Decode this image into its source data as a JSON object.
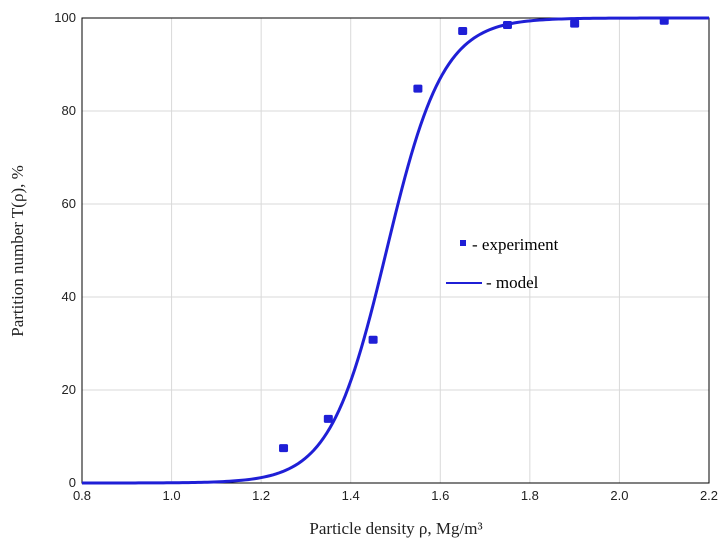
{
  "chart_data": {
    "type": "scatter",
    "xlabel": "Particle density ρ, Mg/m³",
    "ylabel": "Partition number T(ρ), %",
    "xlim": [
      0.8,
      2.2
    ],
    "ylim": [
      0,
      100
    ],
    "xticks": [
      "0.8",
      "1.0",
      "1.2",
      "1.4",
      "1.6",
      "1.8",
      "2.0",
      "2.2"
    ],
    "yticks": [
      "0",
      "20",
      "40",
      "60",
      "80",
      "100"
    ],
    "grid": true,
    "legend_position": "right",
    "colors": {
      "series": "#1f1fd6",
      "grid": "#d9d9d9",
      "axis": "#000000"
    },
    "series": [
      {
        "name": "- experiment",
        "type": "scatter",
        "x": [
          1.25,
          1.35,
          1.45,
          1.55,
          1.65,
          1.75,
          1.9,
          2.1
        ],
        "y": [
          7.5,
          13.8,
          30.8,
          84.8,
          97.2,
          98.5,
          98.8,
          99.4
        ]
      },
      {
        "name": "- model",
        "type": "line",
        "model": {
          "center": 1.48,
          "spread": 0.063
        }
      }
    ]
  }
}
